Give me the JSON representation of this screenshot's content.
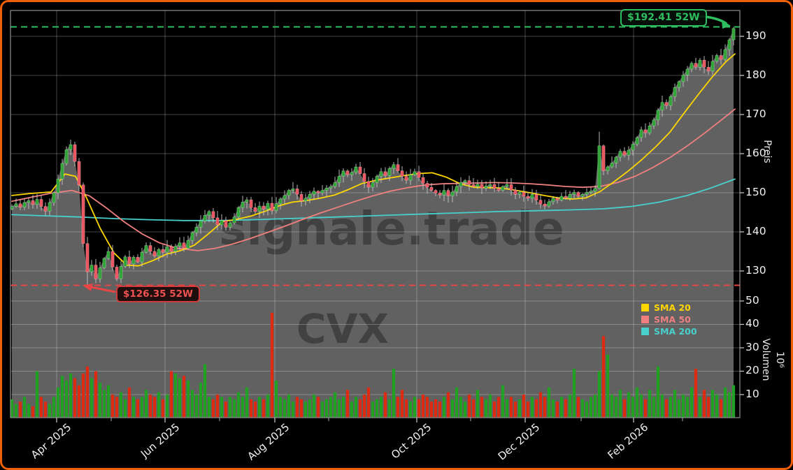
{
  "watermarks": {
    "brand": "signale.trade",
    "symbol": "CVX"
  },
  "annotations": {
    "high_52w": {
      "label": "$192.41 52W",
      "value": 192.41,
      "color": "#2ebd5f"
    },
    "low_52w": {
      "label": "$126.35 52W",
      "value": 126.35,
      "color": "#e84545"
    }
  },
  "legend": [
    {
      "label": "SMA 20",
      "color": "#ffd700"
    },
    {
      "label": "SMA 50",
      "color": "#f08080"
    },
    {
      "label": "SMA 200",
      "color": "#48d1cc"
    }
  ],
  "axes": {
    "price": {
      "title": "Preis",
      "ticks": [
        "190",
        "180",
        "170",
        "160",
        "150",
        "140",
        "130"
      ]
    },
    "volume": {
      "title": "Volumen",
      "unit": "10⁶",
      "ticks": [
        "50",
        "40",
        "30",
        "20",
        "10"
      ]
    },
    "x": {
      "labels": [
        "Apr 2025",
        "Jun 2025",
        "Aug 2025",
        "Oct 2025",
        "Dec 2025",
        "Feb 2026"
      ]
    }
  },
  "chart_data": {
    "type": "candlestick",
    "symbol": "CVX",
    "period": "daily, Mar 2025 - Feb 2026 (52 weeks)",
    "price_ylim": [
      123.7,
      196.6
    ],
    "volume_ylim_millions": [
      0,
      52.5
    ],
    "high_52w": 192.41,
    "low_52w": 126.35,
    "open_first": 145.8,
    "closes": [
      146.5,
      147.2,
      146.3,
      147.5,
      148.0,
      147.0,
      148.3,
      146.5,
      145.3,
      147.5,
      150.0,
      153.5,
      157.5,
      161.0,
      162.3,
      158.0,
      152.0,
      137.0,
      129.8,
      131.5,
      128.0,
      130.8,
      133.2,
      135.0,
      131.0,
      128.0,
      131.2,
      133.6,
      131.8,
      133.5,
      132.3,
      134.8,
      136.5,
      135.0,
      133.8,
      135.5,
      134.8,
      136.2,
      135.0,
      136.3,
      137.2,
      135.8,
      137.8,
      139.8,
      141.2,
      142.8,
      144.2,
      145.2,
      143.6,
      141.8,
      142.9,
      141.2,
      142.3,
      143.8,
      146.2,
      147.6,
      148.2,
      146.2,
      145.2,
      146.6,
      145.8,
      147.3,
      145.4,
      147.2,
      148.4,
      149.3,
      150.6,
      151.0,
      149.6,
      147.9,
      148.6,
      149.6,
      150.4,
      150.0,
      150.6,
      151.2,
      151.6,
      152.6,
      154.2,
      155.6,
      154.6,
      155.2,
      156.6,
      154.9,
      152.9,
      151.4,
      152.6,
      154.2,
      155.4,
      154.4,
      156.2,
      157.2,
      155.6,
      154.2,
      153.2,
      154.6,
      155.4,
      153.9,
      152.4,
      151.4,
      150.6,
      149.9,
      149.4,
      150.6,
      149.2,
      150.2,
      151.6,
      152.6,
      153.1,
      152.1,
      151.6,
      152.2,
      151.2,
      151.7,
      152.1,
      151.1,
      150.6,
      151.6,
      152.1,
      150.7,
      149.6,
      150.1,
      149.1,
      148.6,
      149.6,
      148.1,
      147.1,
      146.6,
      147.7,
      148.6,
      148.1,
      149.1,
      148.6,
      149.6,
      150.1,
      149.1,
      149.6,
      150.1,
      150.4,
      151.1,
      162.0,
      155.6,
      156.6,
      157.6,
      159.1,
      160.6,
      159.6,
      160.9,
      162.4,
      164.1,
      166.1,
      165.3,
      167.1,
      168.6,
      171.1,
      173.1,
      172.3,
      174.6,
      176.9,
      178.4,
      180.1,
      181.6,
      183.1,
      182.1,
      183.9,
      182.1,
      181.1,
      183.6,
      185.1,
      184.1,
      186.6,
      189.1,
      192.0
    ],
    "volumes_millions": [
      8,
      6,
      7,
      9,
      6,
      5,
      20,
      9,
      7,
      6,
      9,
      13,
      18,
      16,
      19,
      17,
      14,
      19,
      22,
      17,
      20,
      15,
      12,
      14,
      10,
      9,
      11,
      8,
      13,
      9,
      8,
      9,
      12,
      10,
      9,
      11,
      8,
      10,
      20,
      19,
      17,
      18,
      16,
      12,
      10,
      15,
      23,
      9,
      8,
      10,
      9,
      7,
      9,
      8,
      11,
      9,
      13,
      8,
      7,
      9,
      8,
      10,
      45,
      16,
      9,
      8,
      10,
      7,
      9,
      8,
      7,
      8,
      10,
      9,
      7,
      8,
      9,
      11,
      8,
      9,
      12,
      7,
      9,
      8,
      10,
      13,
      7,
      8,
      9,
      11,
      8,
      21,
      9,
      12,
      8,
      7,
      9,
      8,
      10,
      9,
      7,
      8,
      7,
      9,
      11,
      8,
      13,
      9,
      7,
      10,
      8,
      12,
      9,
      8,
      10,
      7,
      9,
      14,
      8,
      9,
      7,
      8,
      10,
      7,
      9,
      8,
      11,
      9,
      13,
      8,
      7,
      9,
      8,
      10,
      21,
      9,
      8,
      7,
      9,
      10,
      20,
      35,
      27,
      10,
      9,
      12,
      8,
      11,
      9,
      13,
      10,
      8,
      12,
      9,
      22,
      10,
      8,
      9,
      12,
      8,
      10,
      9,
      13,
      21,
      9,
      12,
      9,
      12,
      10,
      8,
      13,
      11,
      14
    ],
    "forced_wicks": {
      "14": {
        "high": 163.6
      },
      "18": {
        "low": 126.35
      },
      "20": {
        "low": 126.9
      },
      "25": {
        "low": 127.4
      },
      "140": {
        "high": 165.6,
        "low": 150.8
      },
      "172": {
        "high": 192.41
      }
    },
    "sma20": [
      [
        14,
        149.3
      ],
      [
        40,
        149.8
      ],
      [
        70,
        150.2
      ],
      [
        90,
        154.8
      ],
      [
        105,
        154.2
      ],
      [
        120,
        149.0
      ],
      [
        140,
        141.0
      ],
      [
        160,
        134.6
      ],
      [
        178,
        131.5
      ],
      [
        195,
        131.3
      ],
      [
        215,
        132.6
      ],
      [
        235,
        134.3
      ],
      [
        255,
        135.2
      ],
      [
        275,
        136.6
      ],
      [
        295,
        139.5
      ],
      [
        315,
        142.6
      ],
      [
        335,
        143.2
      ],
      [
        355,
        144.0
      ],
      [
        375,
        145.2
      ],
      [
        395,
        146.6
      ],
      [
        415,
        147.6
      ],
      [
        435,
        148.0
      ],
      [
        455,
        148.6
      ],
      [
        475,
        149.4
      ],
      [
        495,
        150.8
      ],
      [
        515,
        152.4
      ],
      [
        535,
        153.2
      ],
      [
        555,
        153.8
      ],
      [
        575,
        154.4
      ],
      [
        595,
        154.9
      ],
      [
        615,
        155.1
      ],
      [
        635,
        154.0
      ],
      [
        655,
        152.3
      ],
      [
        675,
        151.4
      ],
      [
        695,
        151.3
      ],
      [
        715,
        151.2
      ],
      [
        735,
        150.6
      ],
      [
        755,
        150.0
      ],
      [
        775,
        149.3
      ],
      [
        795,
        148.7
      ],
      [
        815,
        148.4
      ],
      [
        835,
        148.7
      ],
      [
        855,
        150.3
      ],
      [
        875,
        152.8
      ],
      [
        895,
        155.5
      ],
      [
        915,
        158.5
      ],
      [
        935,
        161.8
      ],
      [
        955,
        165.5
      ],
      [
        975,
        170.3
      ],
      [
        995,
        175.0
      ],
      [
        1015,
        179.5
      ],
      [
        1035,
        183.5
      ],
      [
        1048,
        185.5
      ]
    ],
    "sma50": [
      [
        14,
        147.8
      ],
      [
        40,
        148.8
      ],
      [
        70,
        149.9
      ],
      [
        100,
        150.6
      ],
      [
        125,
        149.2
      ],
      [
        150,
        146.0
      ],
      [
        175,
        142.5
      ],
      [
        200,
        139.5
      ],
      [
        225,
        137.2
      ],
      [
        250,
        135.8
      ],
      [
        280,
        135.2
      ],
      [
        305,
        135.8
      ],
      [
        330,
        136.9
      ],
      [
        355,
        138.3
      ],
      [
        380,
        139.9
      ],
      [
        405,
        141.5
      ],
      [
        430,
        143.2
      ],
      [
        455,
        144.8
      ],
      [
        480,
        146.3
      ],
      [
        505,
        147.8
      ],
      [
        530,
        149.2
      ],
      [
        555,
        150.4
      ],
      [
        580,
        151.3
      ],
      [
        605,
        152.0
      ],
      [
        630,
        152.3
      ],
      [
        655,
        152.4
      ],
      [
        680,
        152.5
      ],
      [
        705,
        152.6
      ],
      [
        730,
        152.5
      ],
      [
        755,
        152.3
      ],
      [
        780,
        152.0
      ],
      [
        805,
        151.6
      ],
      [
        830,
        151.4
      ],
      [
        855,
        151.6
      ],
      [
        880,
        152.6
      ],
      [
        905,
        154.2
      ],
      [
        930,
        156.4
      ],
      [
        955,
        159.0
      ],
      [
        980,
        162.0
      ],
      [
        1005,
        165.3
      ],
      [
        1030,
        168.8
      ],
      [
        1048,
        171.4
      ]
    ],
    "sma200": [
      [
        14,
        144.4
      ],
      [
        60,
        144.1
      ],
      [
        110,
        143.8
      ],
      [
        160,
        143.4
      ],
      [
        210,
        143.1
      ],
      [
        260,
        142.9
      ],
      [
        310,
        142.9
      ],
      [
        360,
        143.1
      ],
      [
        410,
        143.4
      ],
      [
        460,
        143.7
      ],
      [
        510,
        144.0
      ],
      [
        560,
        144.3
      ],
      [
        610,
        144.6
      ],
      [
        660,
        144.9
      ],
      [
        710,
        145.2
      ],
      [
        760,
        145.4
      ],
      [
        810,
        145.6
      ],
      [
        860,
        145.9
      ],
      [
        900,
        146.5
      ],
      [
        940,
        147.6
      ],
      [
        980,
        149.3
      ],
      [
        1010,
        151.0
      ],
      [
        1030,
        152.3
      ],
      [
        1048,
        153.5
      ]
    ],
    "colors": {
      "up": "#2fa336",
      "down": "#ea5560",
      "up_edge": "#b5e8b5",
      "down_edge": "#f5b9c0",
      "vol_up": "#21a121",
      "vol_down": "#dd2a10",
      "fill": "#616161",
      "wick": "#c8c8c8",
      "sma20": "#ffd700",
      "sma50": "#f08080",
      "sma200": "#48d1cc",
      "high_line": "#2ebd5f",
      "low_line": "#e84545",
      "grid": "rgba(255,255,255,0.27)",
      "spine": "#8f8f8f",
      "watermark": "rgba(0,0,0,0.32)"
    }
  }
}
